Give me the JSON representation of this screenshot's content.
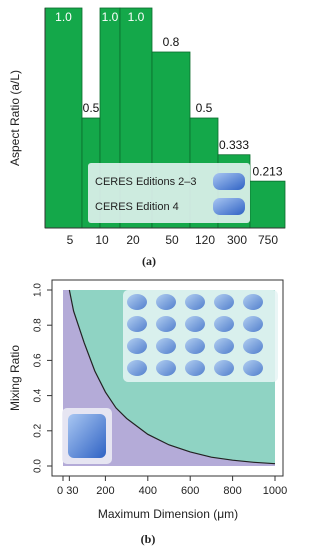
{
  "chart_data": [
    {
      "type": "bar",
      "y_label": "Aspect Ratio (a/L)",
      "values": [
        1.0,
        0.5,
        1.0,
        1.0,
        0.8,
        0.5,
        0.333,
        0.213
      ],
      "value_labels": [
        "1.0",
        "0.5",
        "1.0",
        "1.0",
        "0.8",
        "0.5",
        "0.333",
        "0.213"
      ],
      "xticks": [
        5,
        10,
        20,
        50,
        120,
        300,
        750
      ],
      "color": "#14a84a",
      "ylim": [
        0,
        1
      ],
      "legend": [
        "CERES Editions 2–3",
        "CERES Edition 4"
      ],
      "caption": "(a)"
    },
    {
      "type": "area",
      "x_label": "Maximum Dimension (μm)",
      "y_label": "Mixing Ratio",
      "x": [
        30,
        50,
        100,
        150,
        200,
        250,
        300,
        400,
        500,
        600,
        700,
        800,
        900,
        1000
      ],
      "values": [
        1.0,
        0.88,
        0.7,
        0.54,
        0.42,
        0.33,
        0.27,
        0.18,
        0.12,
        0.08,
        0.05,
        0.033,
        0.021,
        0.013
      ],
      "xlim": [
        0,
        1000
      ],
      "ylim": [
        0,
        1
      ],
      "xticks": [
        0,
        30,
        200,
        400,
        600,
        800,
        1000
      ],
      "yticks": [
        {
          "value": 0,
          "label": "0.0"
        },
        {
          "value": 0.2,
          "label": "0.2"
        },
        {
          "value": 0.4,
          "label": "0.4"
        },
        {
          "value": 0.6,
          "label": "0.6"
        },
        {
          "value": 0.8,
          "label": "0.8"
        },
        {
          "value": 1,
          "label": "1.0"
        }
      ],
      "colors": {
        "below": "#b4abd8",
        "above": "#8fd3c3",
        "line": "#222222"
      },
      "caption": "(b)"
    }
  ]
}
